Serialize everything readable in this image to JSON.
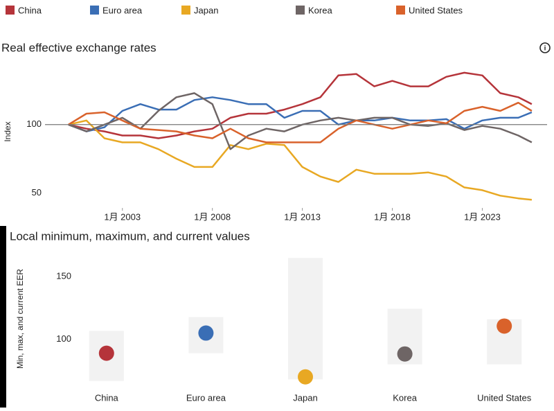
{
  "chart_data": [
    {
      "type": "line",
      "title": "Real effective exchange rates",
      "y_label": "Index",
      "x": [
        2000,
        2001,
        2002,
        2003,
        2004,
        2005,
        2006,
        2007,
        2008,
        2009,
        2010,
        2011,
        2012,
        2013,
        2014,
        2015,
        2016,
        2017,
        2018,
        2019,
        2020,
        2021,
        2022,
        2023,
        2024,
        2025,
        2025.75
      ],
      "series": [
        {
          "name": "China",
          "color": "#b5343a",
          "values": [
            100,
            97,
            95,
            92,
            92,
            90,
            92,
            95,
            97,
            105,
            108,
            108,
            111,
            115,
            120,
            136,
            137,
            128,
            132,
            128,
            128,
            135,
            138,
            136,
            123,
            120,
            115
          ]
        },
        {
          "name": "Euro area",
          "color": "#3a6eb5",
          "values": [
            100,
            95,
            98,
            110,
            115,
            111,
            111,
            118,
            120,
            118,
            115,
            115,
            105,
            110,
            110,
            100,
            103,
            103,
            105,
            103,
            103,
            104,
            97,
            103,
            105,
            105,
            109
          ]
        },
        {
          "name": "Japan",
          "color": "#e8a823",
          "values": [
            100,
            103,
            90,
            87,
            87,
            82,
            75,
            69,
            69,
            85,
            82,
            86,
            85,
            69,
            62,
            58,
            67,
            64,
            64,
            64,
            65,
            62,
            54,
            52,
            48,
            46,
            45
          ]
        },
        {
          "name": "Korea",
          "color": "#6e6565",
          "values": [
            100,
            95,
            100,
            105,
            97,
            110,
            120,
            123,
            115,
            82,
            92,
            97,
            95,
            100,
            103,
            105,
            103,
            105,
            105,
            100,
            99,
            101,
            96,
            99,
            97,
            92,
            87
          ]
        },
        {
          "name": "United States",
          "color": "#d9622b",
          "values": [
            100,
            108,
            109,
            103,
            97,
            96,
            95,
            92,
            90,
            97,
            90,
            87,
            87,
            87,
            87,
            97,
            103,
            100,
            97,
            100,
            103,
            101,
            110,
            113,
            110,
            116,
            110
          ]
        }
      ],
      "xlim": [
        1998.7,
        2026.6
      ],
      "xticks": [
        {
          "value": 2003,
          "label": "1月 2003"
        },
        {
          "value": 2008,
          "label": "1月 2008"
        },
        {
          "value": 2013,
          "label": "1月 2013"
        },
        {
          "value": 2018,
          "label": "1月 2018"
        },
        {
          "value": 2023,
          "label": "1月 2023"
        }
      ],
      "ylim": [
        39,
        143
      ],
      "yticks": [
        50,
        100
      ],
      "hline": 100
    },
    {
      "type": "range",
      "title": "Local minimum, maximum, and current values",
      "y_label": "Min, max, and current EER",
      "categories": [
        "China",
        "Euro area",
        "Japan",
        "Korea",
        "United States"
      ],
      "min": [
        66.7,
        88.9,
        68,
        80,
        80
      ],
      "max": [
        106.7,
        117.8,
        165,
        124.4,
        116
      ],
      "values": [
        88.9,
        105,
        70,
        88.3,
        110.6
      ],
      "colors": [
        "#b5343a",
        "#3a6eb5",
        "#e8a823",
        "#6e6565",
        "#d9622b"
      ],
      "ylim": [
        61,
        169
      ],
      "yticks": [
        100,
        150
      ]
    }
  ]
}
